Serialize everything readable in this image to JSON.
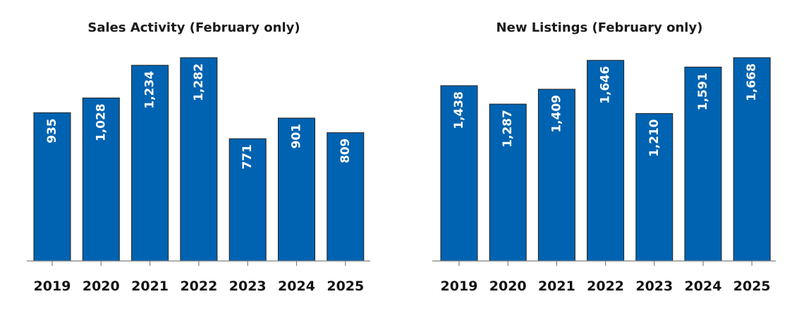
{
  "chart_data": [
    {
      "type": "bar",
      "title": "Sales Activity (February only)",
      "categories": [
        "2019",
        "2020",
        "2021",
        "2022",
        "2023",
        "2024",
        "2025"
      ],
      "values": [
        935,
        1028,
        1234,
        1282,
        771,
        901,
        809
      ],
      "value_labels": [
        "935",
        "1,028",
        "1,234",
        "1,282",
        "771",
        "901",
        "809"
      ],
      "ylim": [
        0,
        1282
      ],
      "bar_color": "#0063B1",
      "grid": false,
      "legend": "none"
    },
    {
      "type": "bar",
      "title": "New Listings (February only)",
      "categories": [
        "2019",
        "2020",
        "2021",
        "2022",
        "2023",
        "2024",
        "2025"
      ],
      "values": [
        1438,
        1287,
        1409,
        1646,
        1210,
        1591,
        1668
      ],
      "value_labels": [
        "1,438",
        "1,287",
        "1,409",
        "1,646",
        "1,210",
        "1,591",
        "1,668"
      ],
      "ylim": [
        0,
        1668
      ],
      "bar_color": "#0063B1",
      "grid": false,
      "legend": "none"
    }
  ]
}
